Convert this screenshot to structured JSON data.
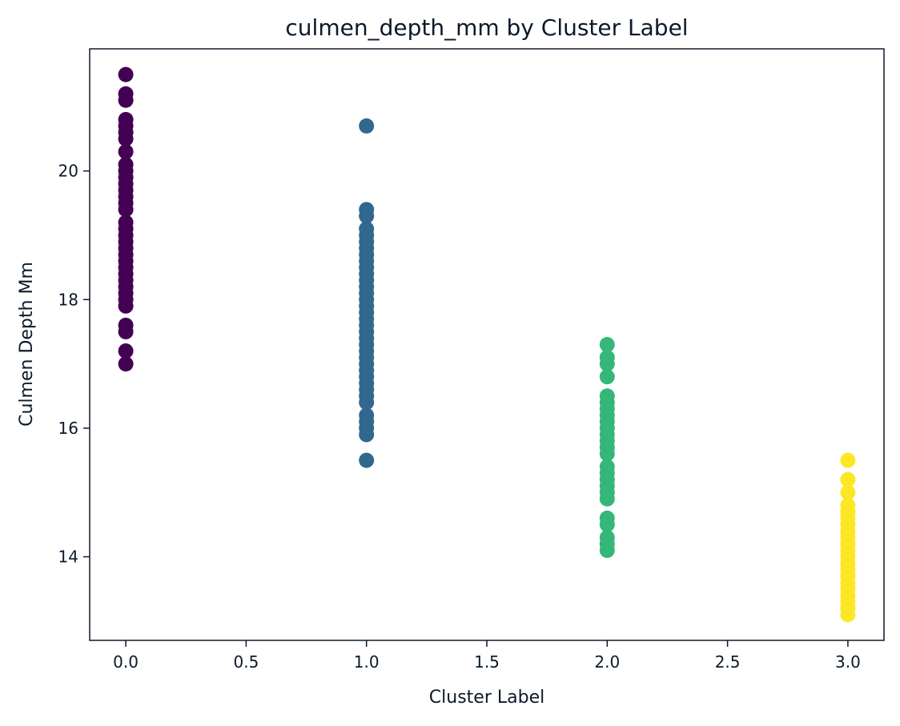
{
  "chart_data": {
    "type": "scatter",
    "title": "culmen_depth_mm by Cluster Label",
    "xlabel": "Cluster Label",
    "ylabel": "Culmen Depth Mm",
    "xlim": [
      -0.15,
      3.15
    ],
    "ylim": [
      12.7,
      21.9
    ],
    "xticks": [
      0.0,
      0.5,
      1.0,
      1.5,
      2.0,
      2.5,
      3.0
    ],
    "xtick_labels": [
      "0.0",
      "0.5",
      "1.0",
      "1.5",
      "2.0",
      "2.5",
      "3.0"
    ],
    "yticks": [
      14,
      16,
      18,
      20
    ],
    "ytick_labels": [
      "14",
      "16",
      "18",
      "20"
    ],
    "grid": false,
    "legend": "none",
    "series": [
      {
        "cluster": 0,
        "color": "#440154",
        "x": 0,
        "y": [
          21.5,
          21.2,
          21.1,
          20.8,
          20.7,
          20.6,
          20.5,
          20.3,
          20.1,
          20.0,
          19.9,
          19.8,
          19.7,
          19.6,
          19.5,
          19.4,
          19.2,
          19.1,
          19.0,
          18.9,
          18.8,
          18.7,
          18.6,
          18.5,
          18.4,
          18.3,
          18.2,
          18.1,
          18.0,
          17.9,
          17.6,
          17.5,
          17.2,
          17.0
        ]
      },
      {
        "cluster": 1,
        "color": "#31688e",
        "x": 1,
        "y": [
          20.7,
          19.4,
          19.3,
          19.1,
          19.0,
          18.9,
          18.8,
          18.7,
          18.6,
          18.5,
          18.4,
          18.3,
          18.2,
          18.1,
          18.0,
          17.9,
          17.8,
          17.7,
          17.6,
          17.5,
          17.4,
          17.3,
          17.2,
          17.1,
          17.0,
          16.9,
          16.8,
          16.7,
          16.6,
          16.5,
          16.4,
          16.2,
          16.1,
          16.0,
          15.9,
          15.5
        ]
      },
      {
        "cluster": 2,
        "color": "#35b779",
        "x": 2,
        "y": [
          17.3,
          17.1,
          17.0,
          16.8,
          16.5,
          16.4,
          16.3,
          16.2,
          16.1,
          16.0,
          15.9,
          15.8,
          15.7,
          15.6,
          15.4,
          15.3,
          15.2,
          15.1,
          15.0,
          14.9,
          14.6,
          14.5,
          14.3,
          14.2,
          14.1
        ]
      },
      {
        "cluster": 3,
        "color": "#fde725",
        "x": 3,
        "y": [
          15.5,
          15.2,
          15.0,
          14.8,
          14.7,
          14.6,
          14.5,
          14.4,
          14.3,
          14.2,
          14.1,
          14.0,
          13.9,
          13.8,
          13.7,
          13.6,
          13.5,
          13.4,
          13.3,
          13.2,
          13.1
        ]
      }
    ]
  }
}
